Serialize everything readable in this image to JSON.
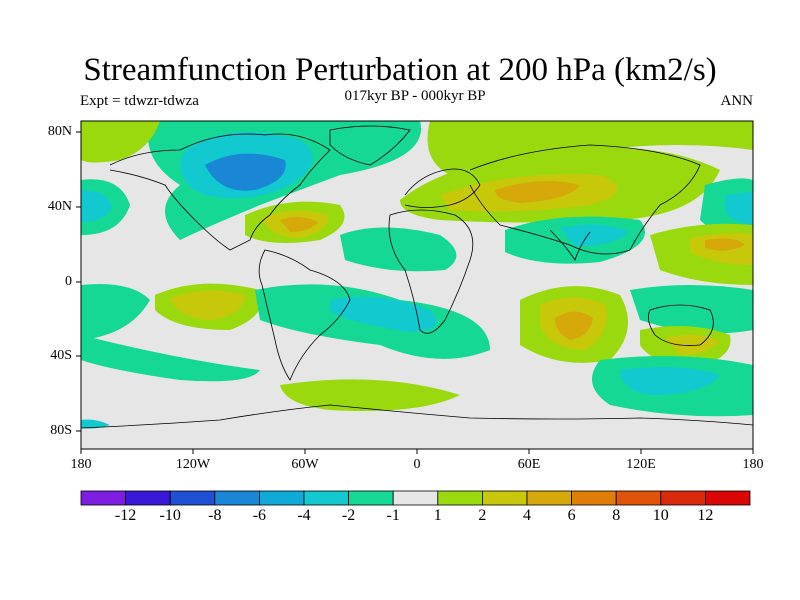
{
  "map": {
    "title": "Streamfunction Perturbation at 200 hPa (km2/s)",
    "subtitle": "017kyr BP - 000kyr BP",
    "experiment": "Expt = tdwzr-tdwza",
    "season": "ANN",
    "lat_labels": [
      "80N",
      "40N",
      "0",
      "40S",
      "80S"
    ],
    "lon_labels": [
      "180",
      "120W",
      "60W",
      "0",
      "60E",
      "120E",
      "180"
    ]
  },
  "colorbar": {
    "labels": [
      "-12",
      "-10",
      "-8",
      "-6",
      "-4",
      "-2",
      "-1",
      "1",
      "2",
      "4",
      "6",
      "8",
      "10",
      "12"
    ],
    "colors": [
      "#7d1de0",
      "#3a17d6",
      "#1f4fd2",
      "#1a86d6",
      "#10aad8",
      "#11c9cf",
      "#14d893",
      "#e6e6e6",
      "#99d90d",
      "#c8c80a",
      "#d6a80a",
      "#de7d08",
      "#df5408",
      "#d82a0a",
      "#da0505"
    ]
  }
}
